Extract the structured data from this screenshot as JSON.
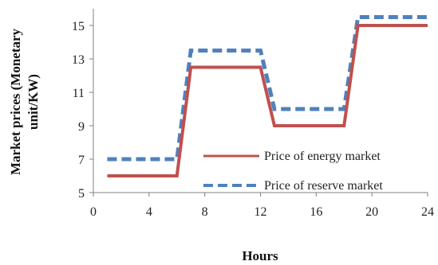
{
  "chart_data": {
    "type": "line",
    "xlabel": "Hours",
    "ylabel": [
      "Market prices (Monetary",
      "unit/KW)"
    ],
    "xlim": [
      0,
      24
    ],
    "ylim": [
      5,
      16
    ],
    "xticks": [
      0,
      4,
      8,
      12,
      16,
      20,
      24
    ],
    "yticks": [
      5,
      7,
      9,
      11,
      13,
      15
    ],
    "grid": false,
    "legend_position": "bottom-right",
    "series": [
      {
        "name": "Price of energy market",
        "color": "#c0504d",
        "dash": "solid",
        "x": [
          1,
          2,
          3,
          4,
          5,
          6,
          7,
          8,
          9,
          10,
          11,
          12,
          13,
          14,
          15,
          16,
          17,
          18,
          19,
          20,
          21,
          22,
          23,
          24
        ],
        "values": [
          6,
          6,
          6,
          6,
          6,
          6,
          12.5,
          12.5,
          12.5,
          12.5,
          12.5,
          12.5,
          9,
          9,
          9,
          9,
          9,
          9,
          15,
          15,
          15,
          15,
          15,
          15
        ]
      },
      {
        "name": "Price of reserve market",
        "color": "#4f81bd",
        "dash": "dashed",
        "x": [
          1,
          2,
          3,
          4,
          5,
          6,
          7,
          8,
          9,
          10,
          11,
          12,
          13,
          14,
          15,
          16,
          17,
          18,
          19,
          20,
          21,
          22,
          23,
          24
        ],
        "values": [
          7,
          7,
          7,
          7,
          7,
          7,
          13.5,
          13.5,
          13.5,
          13.5,
          13.5,
          13.5,
          10,
          10,
          10,
          10,
          10,
          10,
          15.5,
          15.5,
          15.5,
          15.5,
          15.5,
          15.5
        ]
      }
    ]
  }
}
